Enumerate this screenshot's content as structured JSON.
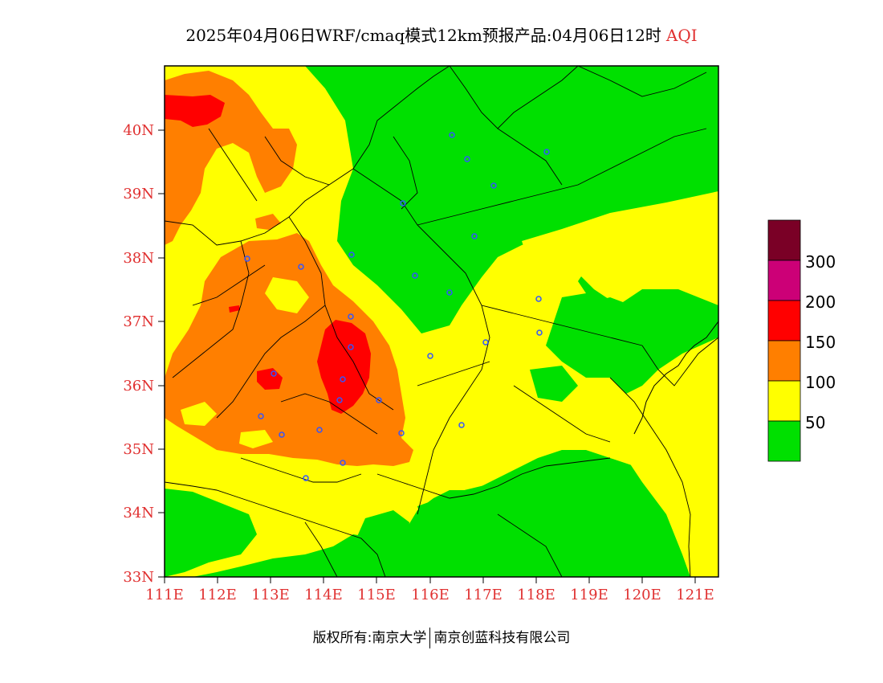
{
  "title": {
    "main": "2025年04月06日WRF/cmaq模式12km预报产品:04月06日12时",
    "aqi": "AQI"
  },
  "colors": {
    "good": "#00e000",
    "moderate": "#ffff00",
    "usg": "#ff7f00",
    "unhealthy": "#ff0000",
    "very_unhealthy": "#cc0077",
    "hazardous": "#7a0026",
    "label_red": "#e03030",
    "city_marker": "#3355ff"
  },
  "map": {
    "lat_labels": [
      "40N",
      "39N",
      "38N",
      "37N",
      "36N",
      "35N",
      "34N",
      "33N"
    ],
    "lon_labels": [
      "111E",
      "112E",
      "113E",
      "114E",
      "115E",
      "116E",
      "117E",
      "118E",
      "119E",
      "120E",
      "121E"
    ]
  },
  "legend": {
    "labels": [
      "300",
      "200",
      "150",
      "100",
      "50"
    ]
  },
  "footer": {
    "left": "版权所有:南京大学",
    "right": "南京创蓝科技有限公司"
  }
}
